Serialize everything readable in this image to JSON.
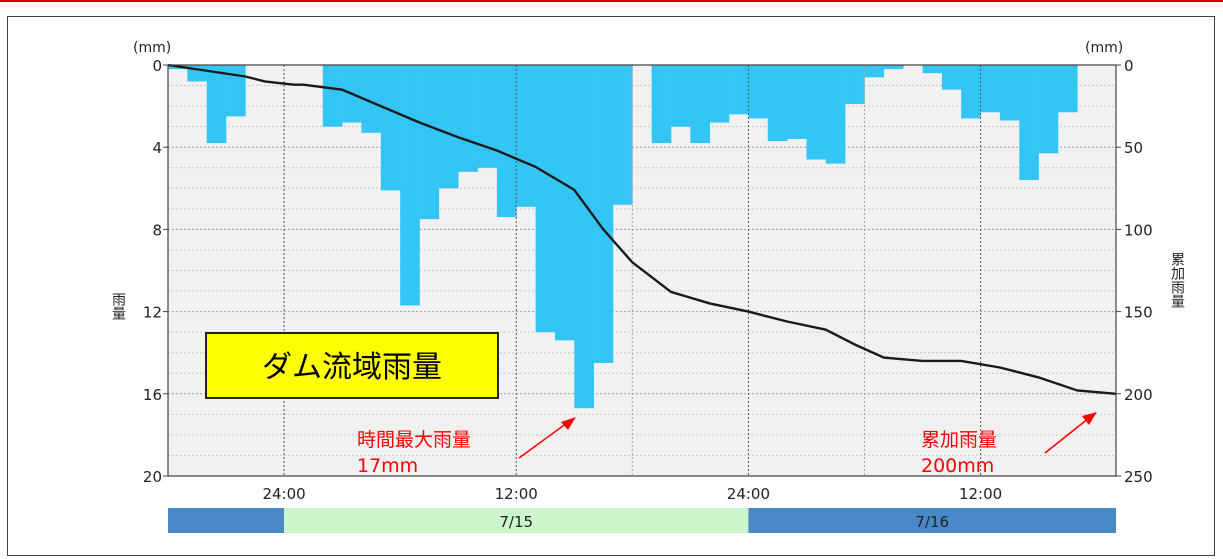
{
  "chart_data": {
    "type": "bar",
    "title": "ダム流域雨量",
    "y_left": {
      "unit_label": "(mm)",
      "label": "雨量",
      "range": [
        0,
        20
      ],
      "ticks": [
        "0",
        "4",
        "8",
        "12",
        "16",
        "20"
      ],
      "inverted": true
    },
    "y_right": {
      "unit_label": "(mm)",
      "label": "累加雨量",
      "range": [
        0,
        250
      ],
      "ticks": [
        "0",
        "50",
        "100",
        "150",
        "200",
        "250"
      ],
      "inverted": true
    },
    "x_ticks": [
      "24:00",
      "12:00",
      "24:00",
      "12:00"
    ],
    "date_bands": [
      {
        "label": "",
        "color": "#4a89c8"
      },
      {
        "label": "7/15",
        "color": "#ccf5cc"
      },
      {
        "label": "7/16",
        "color": "#4a89c8"
      }
    ],
    "series": [
      {
        "name": "雨量",
        "type": "bar",
        "color": "#33c6f5",
        "unit": "mm/h",
        "values": [
          0.2,
          0.8,
          3.8,
          2.5,
          0,
          0,
          0,
          0,
          3,
          2.8,
          3.3,
          6.1,
          11.7,
          7.5,
          6,
          5.2,
          5,
          7.4,
          6.9,
          13,
          13.4,
          16.7,
          14.5,
          6.8,
          0,
          3.8,
          3,
          3.8,
          2.8,
          2.4,
          2.6,
          3.7,
          3.6,
          4.6,
          4.8,
          1.9,
          0.6,
          0.2,
          0,
          0.4,
          1.2,
          2.6,
          2.3,
          2.7,
          5.6,
          4.3,
          2.3,
          0,
          0
        ]
      },
      {
        "name": "累加雨量",
        "type": "line",
        "axis": "right",
        "color": "#1a1a1a",
        "x": [
          0,
          4,
          5,
          6.5,
          7,
          9,
          11,
          13,
          15,
          17,
          19,
          21,
          22.5,
          24,
          26,
          28,
          30,
          32,
          34,
          35.5,
          37,
          39,
          41,
          43,
          45,
          47,
          49
        ],
        "values": [
          0,
          7,
          10,
          12,
          12,
          15,
          25,
          35,
          44,
          52,
          62,
          76,
          100,
          120,
          138,
          145,
          150,
          156,
          161,
          170,
          178,
          180,
          180,
          184,
          190,
          198,
          200
        ]
      }
    ],
    "annotations": [
      {
        "text": "時間最大雨量",
        "value_text": "17mm"
      },
      {
        "text": "累加雨量",
        "value_text": "200mm"
      }
    ],
    "grid": true
  }
}
